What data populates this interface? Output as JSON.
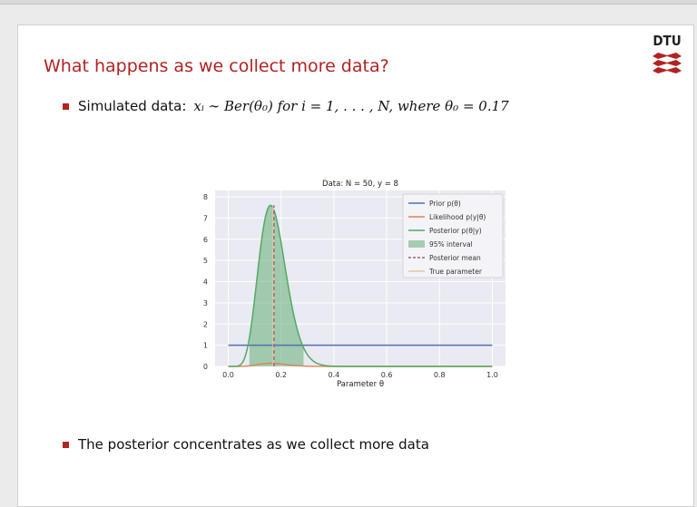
{
  "slide": {
    "title": "What happens as we collect more data?",
    "logo_text": "DTU",
    "bullet1": {
      "prefix": "Simulated data:",
      "formula": "xᵢ ∼ Ber(θ₀) for i = 1, . . . , N, where θ₀ = 0.17"
    },
    "bullet2": "The posterior concentrates as we collect more data"
  },
  "colors": {
    "title": "#b22222",
    "prior": "#4c72b0",
    "likelihood": "#dd8452",
    "posterior": "#55a868",
    "interval": "#55a868",
    "mean": "#8c6d6d",
    "truth": "#e0c9a6",
    "plot_bg": "#eaeaf2"
  },
  "chart_data": {
    "type": "line",
    "title": "Data: N = 50, y = 8",
    "xlabel": "Parameter θ",
    "ylabel": "",
    "xlim": [
      -0.05,
      1.05
    ],
    "ylim": [
      0,
      8.3
    ],
    "xticks": [
      "0.0",
      "0.2",
      "0.4",
      "0.6",
      "0.8",
      "1.0"
    ],
    "yticks": [
      "0",
      "1",
      "2",
      "3",
      "4",
      "5",
      "6",
      "7",
      "8"
    ],
    "legend_position": "top-right",
    "legend": [
      "Prior p(θ)",
      "Likelihood p(y|θ)",
      "Posterior p(θ|y)",
      "95% interval",
      "Posterior mean",
      "True parameter"
    ],
    "prior": {
      "x": [
        0,
        1
      ],
      "y": [
        1,
        1
      ]
    },
    "N": 50,
    "y": 8,
    "posterior_peak": 7.6,
    "likelihood_peak": 0.15,
    "interval": [
      0.08,
      0.285
    ],
    "posterior_mean": 0.173,
    "true_parameter": 0.17
  }
}
